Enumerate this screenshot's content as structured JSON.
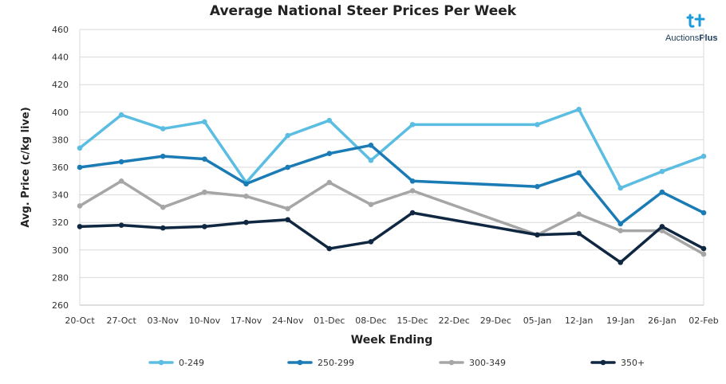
{
  "chart_data": {
    "type": "line",
    "title": "Average National Steer Prices Per Week",
    "xlabel": "Week Ending",
    "ylabel": "Avg. Price (c/kg live)",
    "ylim": [
      260,
      460
    ],
    "yticks": [
      260,
      280,
      300,
      320,
      340,
      360,
      380,
      400,
      420,
      440,
      460
    ],
    "grid": true,
    "legend": "bottom",
    "categories": [
      "20-Oct",
      "27-Oct",
      "03-Nov",
      "10-Nov",
      "17-Nov",
      "24-Nov",
      "01-Dec",
      "08-Dec",
      "15-Dec",
      "22-Dec",
      "29-Dec",
      "05-Jan",
      "12-Jan",
      "19-Jan",
      "26-Jan",
      "02-Feb"
    ],
    "series": [
      {
        "name": "0-249",
        "color": "#5bbde2",
        "values": [
          374,
          398,
          388,
          393,
          349,
          383,
          394,
          365,
          391,
          null,
          null,
          391,
          402,
          345,
          357,
          368
        ]
      },
      {
        "name": "250-299",
        "color": "#1a7bb5",
        "values": [
          360,
          364,
          368,
          366,
          348,
          360,
          370,
          376,
          350,
          null,
          null,
          346,
          356,
          319,
          342,
          327
        ]
      },
      {
        "name": "300-349",
        "color": "#a6a6a6",
        "values": [
          332,
          350,
          331,
          342,
          339,
          330,
          349,
          333,
          343,
          null,
          null,
          311,
          326,
          314,
          314,
          297
        ]
      },
      {
        "name": "350+",
        "color": "#0f2740",
        "values": [
          317,
          318,
          316,
          317,
          320,
          322,
          301,
          306,
          327,
          null,
          null,
          311,
          312,
          291,
          317,
          301
        ]
      }
    ]
  },
  "brand": {
    "logo_prefix": "Auctions",
    "logo_suffix": "Plus",
    "logo_icon": "auctionsplus-logo-icon",
    "logo_color": "#1b9bd7"
  }
}
